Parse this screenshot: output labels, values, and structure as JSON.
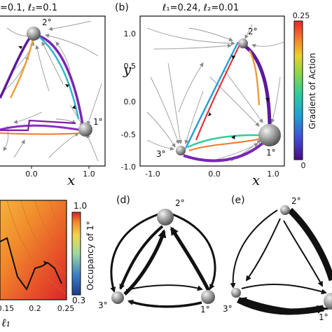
{
  "panel_a": {
    "title": "=0.1, ℓ₂=0.1",
    "xtick_labels": [
      "0.0",
      "1.0"
    ],
    "xlabel": "x",
    "node_labels": {
      "n2": "2°",
      "n1": "1°"
    }
  },
  "panel_b": {
    "letter": "(b)",
    "title": "ℓ₁=0.24, ℓ₂=0.01",
    "xtick_labels": [
      "-1.0",
      "0.0",
      "1.0"
    ],
    "ytick_labels": [
      "1.0",
      "0.5",
      "0.0",
      "-0.5",
      "-1.0"
    ],
    "xlabel": "x",
    "ylabel": "y",
    "node_labels": {
      "n2": "2°",
      "n1": "1°",
      "n3": "3°"
    },
    "colorbar": {
      "label": "Gradient of Action",
      "max_label": "0.25",
      "min_label": "0",
      "colors": [
        "#4b0c82",
        "#3f4bd3",
        "#1fa3d6",
        "#2fce9a",
        "#8bd54a",
        "#e9d12e",
        "#f4782a",
        "#e3262c"
      ]
    }
  },
  "panel_c": {
    "xtick_labels": [
      "0.15",
      "0.2",
      "0.25"
    ],
    "xlabel": "ℓ₁",
    "colorbar": {
      "label": "Occupancy of 1°",
      "max_label": "1.0",
      "min_label": "0.3"
    }
  },
  "panel_d": {
    "letter": "(d)",
    "node_labels": {
      "n2": "2°",
      "n3": "3°",
      "n1": "1°"
    }
  },
  "panel_e": {
    "letter": "(e)",
    "node_labels": {
      "n2": "2°",
      "n3": "3°",
      "n1": "1°"
    }
  }
}
